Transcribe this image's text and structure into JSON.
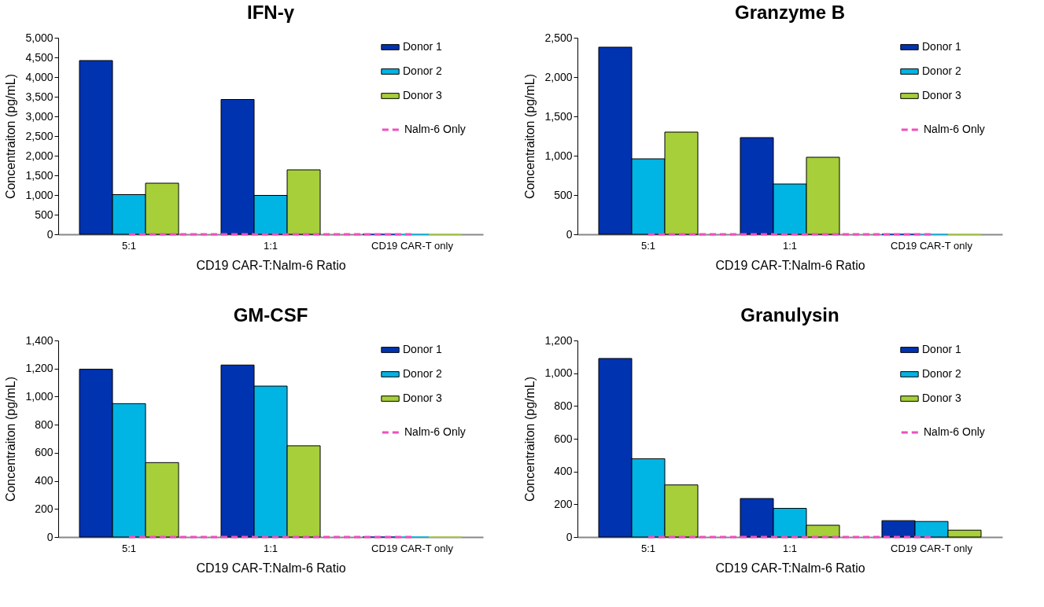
{
  "chart_data": [
    {
      "type": "bar",
      "title": "IFN-γ",
      "xlabel": "CD19 CAR-T:Nalm-6 Ratio",
      "ylabel": "Concentraiton (pg/mL)",
      "categories": [
        "5:1",
        "1:1",
        "CD19 CAR-T only"
      ],
      "ylim": [
        0,
        5000
      ],
      "yticks": [
        0,
        500,
        {
          "value": 1000,
          "label": "1,000"
        },
        {
          "value": 1500,
          "label": "1,500"
        },
        {
          "value": 2000,
          "label": "2,000"
        },
        {
          "value": 2500,
          "label": "2,500"
        },
        {
          "value": 3000,
          "label": "3,000"
        },
        {
          "value": 3500,
          "label": "3,500"
        },
        {
          "value": 4000,
          "label": "4,000"
        },
        {
          "value": 4500,
          "label": "4,500"
        },
        {
          "value": 5000,
          "label": "5,000"
        }
      ],
      "legend": "top right",
      "series": [
        {
          "name": "Donor 1",
          "color": "#0033b0",
          "values": [
            4420,
            3430,
            0
          ]
        },
        {
          "name": "Donor 2",
          "color": "#00b4e4",
          "values": [
            1010,
            990,
            0
          ]
        },
        {
          "name": "Donor 3",
          "color": "#a6cf3a",
          "values": [
            1300,
            1640,
            0
          ]
        },
        {
          "name": "Nalm-6 Only",
          "type": "line",
          "line_style": "dashed",
          "color": "#ef4fbf",
          "values": [
            0,
            0,
            0
          ]
        }
      ]
    },
    {
      "type": "bar",
      "title": "Granzyme B",
      "xlabel": "CD19 CAR-T:Nalm-6 Ratio",
      "ylabel": "Concentraiton (pg/mL)",
      "categories": [
        "5:1",
        "1:1",
        "CD19 CAR-T only"
      ],
      "ylim": [
        0,
        2500
      ],
      "yticks": [
        0,
        500,
        {
          "value": 1000,
          "label": "1,000"
        },
        {
          "value": 1500,
          "label": "1,500"
        },
        {
          "value": 2000,
          "label": "2,000"
        },
        {
          "value": 2500,
          "label": "2,500"
        }
      ],
      "legend": "top right",
      "series": [
        {
          "name": "Donor 1",
          "color": "#0033b0",
          "values": [
            2380,
            1230,
            0
          ]
        },
        {
          "name": "Donor 2",
          "color": "#00b4e4",
          "values": [
            960,
            640,
            0
          ]
        },
        {
          "name": "Donor 3",
          "color": "#a6cf3a",
          "values": [
            1300,
            980,
            0
          ]
        },
        {
          "name": "Nalm-6 Only",
          "type": "line",
          "line_style": "dashed",
          "color": "#ef4fbf",
          "values": [
            0,
            0,
            0
          ]
        }
      ]
    },
    {
      "type": "bar",
      "title": "GM-CSF",
      "xlabel": "CD19 CAR-T:Nalm-6 Ratio",
      "ylabel": "Concentraiton (pg/mL)",
      "categories": [
        "5:1",
        "1:1",
        "CD19 CAR-T only"
      ],
      "ylim": [
        0,
        1400
      ],
      "yticks": [
        0,
        200,
        400,
        600,
        800,
        {
          "value": 1000,
          "label": "1,000"
        },
        {
          "value": 1200,
          "label": "1,200"
        },
        {
          "value": 1400,
          "label": "1,400"
        }
      ],
      "legend": "top right",
      "series": [
        {
          "name": "Donor 1",
          "color": "#0033b0",
          "values": [
            1195,
            1225,
            0
          ]
        },
        {
          "name": "Donor 2",
          "color": "#00b4e4",
          "values": [
            950,
            1075,
            0
          ]
        },
        {
          "name": "Donor 3",
          "color": "#a6cf3a",
          "values": [
            530,
            650,
            0
          ]
        },
        {
          "name": "Nalm-6 Only",
          "type": "line",
          "line_style": "dashed",
          "color": "#ef4fbf",
          "values": [
            0,
            0,
            0
          ]
        }
      ]
    },
    {
      "type": "bar",
      "title": "Granulysin",
      "xlabel": "CD19 CAR-T:Nalm-6 Ratio",
      "ylabel": "Concentraiton (pg/mL)",
      "categories": [
        "5:1",
        "1:1",
        "CD19 CAR-T only"
      ],
      "ylim": [
        0,
        1200
      ],
      "yticks": [
        0,
        200,
        400,
        600,
        800,
        {
          "value": 1000,
          "label": "1,000"
        },
        {
          "value": 1200,
          "label": "1,200"
        }
      ],
      "legend": "top right",
      "series": [
        {
          "name": "Donor 1",
          "color": "#0033b0",
          "values": [
            1090,
            235,
            100
          ]
        },
        {
          "name": "Donor 2",
          "color": "#00b4e4",
          "values": [
            478,
            175,
            95
          ]
        },
        {
          "name": "Donor 3",
          "color": "#a6cf3a",
          "values": [
            318,
            72,
            42
          ]
        },
        {
          "name": "Nalm-6 Only",
          "type": "line",
          "line_style": "dashed",
          "color": "#ef4fbf",
          "values": [
            0,
            0,
            0
          ]
        }
      ]
    }
  ]
}
